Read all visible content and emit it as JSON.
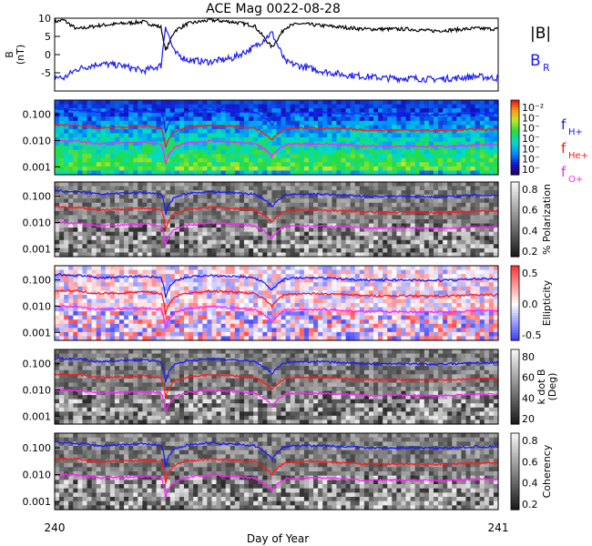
{
  "title": "ACE Mag 0022-08-28",
  "x_axis": {
    "label": "Day of Year",
    "ticks": [
      "240",
      "241"
    ],
    "range": [
      240,
      241
    ]
  },
  "panels": [
    {
      "id": "bfield",
      "ylabel": "B\n(nT)",
      "yticks": [
        "10",
        "5",
        "0",
        "-5"
      ],
      "legend": [
        {
          "text": "|B|",
          "color": "#000000"
        },
        {
          "text": "B",
          "sub": "R",
          "color": "#1a1aff"
        }
      ]
    },
    {
      "id": "power",
      "background": "rainbow",
      "yticks": [
        "0.100",
        "0.010",
        "0.001"
      ],
      "colorbar": {
        "type": "rainbow",
        "ticks": [
          "10⁻²",
          "10⁻",
          "10⁻",
          "10⁻",
          "10⁻",
          "10⁻",
          "10⁻"
        ]
      },
      "legend": [
        {
          "text": "f",
          "sub": "H+",
          "color": "#1a1aff"
        },
        {
          "text": "f",
          "sub": "He+",
          "color": "#ff1a1a"
        },
        {
          "text": "f",
          "sub": "O+",
          "color": "#ff22ff"
        }
      ]
    },
    {
      "id": "polarization",
      "background": "gray",
      "yticks": [
        "0.100",
        "0.010",
        "0.001"
      ],
      "colorbar": {
        "type": "gray",
        "label": "% Polarization",
        "ticks": [
          "0.8",
          "0.6",
          "0.4",
          "0.2"
        ]
      }
    },
    {
      "id": "ellipticity",
      "background": "bluewhitered",
      "yticks": [
        "0.100",
        "0.010",
        "0.001"
      ],
      "colorbar": {
        "type": "bwr",
        "label": "Ellipticity",
        "ticks": [
          "0.5",
          "0.0",
          "-0.5"
        ]
      }
    },
    {
      "id": "kdotb",
      "background": "gray",
      "yticks": [
        "0.100",
        "0.010",
        "0.001"
      ],
      "colorbar": {
        "type": "gray",
        "label": "k dot B\n(Deg)",
        "ticks": [
          "80",
          "60",
          "40",
          "20"
        ]
      }
    },
    {
      "id": "coherency",
      "background": "gray",
      "yticks": [
        "0.100",
        "0.010",
        "0.001"
      ],
      "colorbar": {
        "type": "gray",
        "label": "Coherency",
        "ticks": [
          "0.8",
          "0.6",
          "0.4",
          "0.2"
        ]
      }
    }
  ],
  "chart_data": [
    {
      "type": "line",
      "title": "ACE Mag 0022-08-28",
      "xlabel": "Day of Year",
      "ylabel": "B (nT)",
      "ylim": [
        -10,
        10
      ],
      "xlim": [
        240,
        241
      ],
      "series": [
        {
          "name": "|B|",
          "x": [
            240.0,
            240.02,
            240.05,
            240.1,
            240.15,
            240.2,
            240.24,
            240.25,
            240.27,
            240.3,
            240.35,
            240.4,
            240.45,
            240.49,
            240.52,
            240.55,
            240.6,
            240.65,
            240.7,
            240.75,
            240.8,
            240.85,
            240.9,
            240.95,
            241.0
          ],
          "values": [
            9.0,
            9.5,
            7.0,
            8.0,
            8.5,
            9.0,
            7.5,
            1.0,
            6.5,
            8.5,
            9.5,
            9.0,
            8.0,
            2.0,
            7.5,
            8.5,
            8.0,
            7.5,
            7.0,
            7.0,
            7.0,
            6.5,
            6.8,
            7.2,
            7.0
          ]
        },
        {
          "name": "B_R",
          "x": [
            240.0,
            240.02,
            240.05,
            240.1,
            240.15,
            240.2,
            240.24,
            240.25,
            240.27,
            240.3,
            240.35,
            240.4,
            240.45,
            240.49,
            240.52,
            240.55,
            240.6,
            240.65,
            240.7,
            240.75,
            240.8,
            240.85,
            240.9,
            240.95,
            241.0
          ],
          "values": [
            -6.0,
            -6.5,
            -4.0,
            -2.5,
            -3.0,
            -4.5,
            -3.0,
            8.0,
            0.5,
            -1.5,
            -2.0,
            -1.0,
            2.0,
            6.0,
            -2.0,
            -3.0,
            -4.5,
            -5.5,
            -6.0,
            -6.5,
            -6.5,
            -6.8,
            -6.5,
            -6.0,
            -6.5
          ]
        }
      ]
    },
    {
      "type": "line",
      "xlabel": "Day of Year",
      "xlim": [
        240,
        241
      ],
      "ylim": [
        0.0005,
        0.35
      ],
      "yscale": "log",
      "series": [
        {
          "name": "f_H+",
          "x": [
            240.0,
            240.05,
            240.1,
            240.15,
            240.2,
            240.24,
            240.25,
            240.27,
            240.3,
            240.35,
            240.4,
            240.45,
            240.49,
            240.52,
            240.55,
            240.6,
            240.65,
            240.7,
            240.75,
            240.8,
            240.85,
            240.9,
            240.95,
            241.0
          ],
          "values": [
            0.16,
            0.15,
            0.12,
            0.13,
            0.14,
            0.12,
            0.02,
            0.09,
            0.13,
            0.15,
            0.14,
            0.12,
            0.04,
            0.11,
            0.12,
            0.12,
            0.11,
            0.1,
            0.1,
            0.1,
            0.095,
            0.1,
            0.11,
            0.11
          ]
        },
        {
          "name": "f_He+",
          "x": [
            240.0,
            240.05,
            240.1,
            240.15,
            240.2,
            240.24,
            240.25,
            240.27,
            240.3,
            240.35,
            240.4,
            240.45,
            240.49,
            240.52,
            240.55,
            240.6,
            240.65,
            240.7,
            240.75,
            240.8,
            240.85,
            240.9,
            240.95,
            241.0
          ],
          "values": [
            0.04,
            0.038,
            0.03,
            0.032,
            0.035,
            0.03,
            0.005,
            0.022,
            0.032,
            0.038,
            0.035,
            0.03,
            0.01,
            0.028,
            0.03,
            0.03,
            0.028,
            0.025,
            0.025,
            0.025,
            0.024,
            0.025,
            0.027,
            0.027
          ]
        },
        {
          "name": "f_O+",
          "x": [
            240.0,
            240.05,
            240.1,
            240.15,
            240.2,
            240.24,
            240.25,
            240.27,
            240.3,
            240.35,
            240.4,
            240.45,
            240.49,
            240.52,
            240.55,
            240.6,
            240.65,
            240.7,
            240.75,
            240.8,
            240.85,
            240.9,
            240.95,
            241.0
          ],
          "values": [
            0.01,
            0.0095,
            0.0075,
            0.008,
            0.0088,
            0.0075,
            0.0013,
            0.0055,
            0.008,
            0.0095,
            0.0088,
            0.0075,
            0.0025,
            0.007,
            0.0075,
            0.0075,
            0.007,
            0.0062,
            0.0062,
            0.0062,
            0.006,
            0.0062,
            0.0068,
            0.0068
          ]
        }
      ]
    }
  ]
}
